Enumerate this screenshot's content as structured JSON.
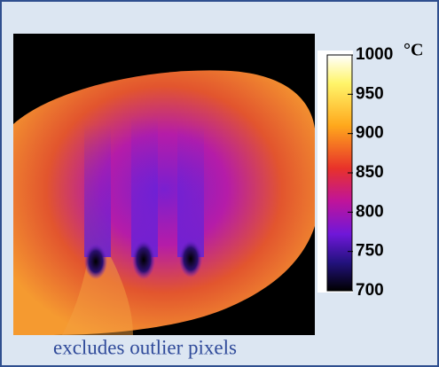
{
  "colorbar": {
    "range": [
      700,
      1000
    ],
    "ticks": [
      700,
      750,
      800,
      850,
      900,
      950,
      1000
    ],
    "unit": "°C"
  },
  "caption": "excludes outlier pixels"
}
